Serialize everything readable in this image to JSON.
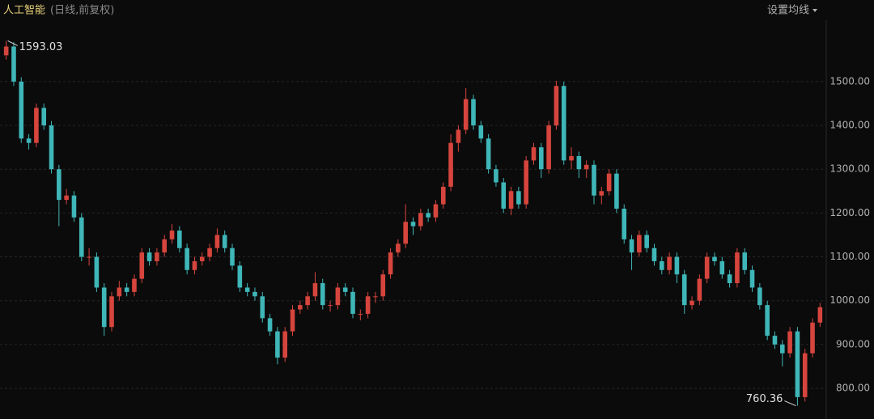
{
  "chart_data": {
    "type": "candlestick",
    "title": "人工智能",
    "subtitle": "(日线,前复权)",
    "button": "设置均线",
    "up_color": "#d6453d",
    "down_color": "#3fb6b8",
    "grid": true,
    "ylim": [
      730,
      1640
    ],
    "yticks": [
      {
        "value": 800,
        "label": "800.00"
      },
      {
        "value": 900,
        "label": "900.00"
      },
      {
        "value": 1000,
        "label": "1000.00"
      },
      {
        "value": 1100,
        "label": "1100.00"
      },
      {
        "value": 1200,
        "label": "1200.00"
      },
      {
        "value": 1300,
        "label": "1300.00"
      },
      {
        "value": 1400,
        "label": "1400.00"
      },
      {
        "value": 1500,
        "label": "1500.00"
      }
    ],
    "ohlc": [
      [
        1560,
        1593.03,
        1550,
        1580
      ],
      [
        1580,
        1590,
        1490,
        1500
      ],
      [
        1500,
        1510,
        1360,
        1370
      ],
      [
        1370,
        1380,
        1345,
        1360
      ],
      [
        1360,
        1450,
        1350,
        1440
      ],
      [
        1440,
        1450,
        1390,
        1400
      ],
      [
        1400,
        1410,
        1290,
        1300
      ],
      [
        1300,
        1310,
        1170,
        1230
      ],
      [
        1230,
        1255,
        1220,
        1240
      ],
      [
        1240,
        1250,
        1180,
        1190
      ],
      [
        1190,
        1200,
        1090,
        1100
      ],
      [
        1100,
        1120,
        1080,
        1100
      ],
      [
        1100,
        1110,
        1020,
        1030
      ],
      [
        1030,
        1040,
        920,
        940
      ],
      [
        940,
        1020,
        930,
        1010
      ],
      [
        1010,
        1045,
        1000,
        1030
      ],
      [
        1030,
        1040,
        1010,
        1020
      ],
      [
        1020,
        1060,
        1010,
        1050
      ],
      [
        1050,
        1120,
        1040,
        1110
      ],
      [
        1110,
        1120,
        1080,
        1090
      ],
      [
        1090,
        1120,
        1080,
        1110
      ],
      [
        1110,
        1150,
        1100,
        1140
      ],
      [
        1140,
        1175,
        1130,
        1160
      ],
      [
        1160,
        1170,
        1110,
        1120
      ],
      [
        1120,
        1130,
        1060,
        1070
      ],
      [
        1070,
        1100,
        1060,
        1090
      ],
      [
        1090,
        1110,
        1080,
        1100
      ],
      [
        1100,
        1130,
        1090,
        1120
      ],
      [
        1120,
        1165,
        1110,
        1150
      ],
      [
        1150,
        1160,
        1110,
        1120
      ],
      [
        1120,
        1130,
        1070,
        1080
      ],
      [
        1080,
        1090,
        1020,
        1030
      ],
      [
        1030,
        1040,
        1010,
        1020
      ],
      [
        1020,
        1030,
        1000,
        1010
      ],
      [
        1010,
        1020,
        950,
        960
      ],
      [
        960,
        970,
        920,
        930
      ],
      [
        930,
        940,
        855,
        870
      ],
      [
        870,
        940,
        860,
        930
      ],
      [
        930,
        990,
        920,
        980
      ],
      [
        980,
        1000,
        970,
        990
      ],
      [
        990,
        1020,
        980,
        1010
      ],
      [
        1010,
        1065,
        1000,
        1040
      ],
      [
        1040,
        1050,
        980,
        990
      ],
      [
        990,
        1000,
        975,
        990
      ],
      [
        990,
        1040,
        980,
        1030
      ],
      [
        1030,
        1040,
        1010,
        1020
      ],
      [
        1020,
        1030,
        960,
        970
      ],
      [
        970,
        980,
        955,
        970
      ],
      [
        970,
        1020,
        960,
        1010
      ],
      [
        1010,
        1020,
        995,
        1010
      ],
      [
        1010,
        1070,
        1000,
        1060
      ],
      [
        1060,
        1120,
        1050,
        1110
      ],
      [
        1110,
        1140,
        1100,
        1130
      ],
      [
        1130,
        1220,
        1120,
        1180
      ],
      [
        1180,
        1190,
        1150,
        1170
      ],
      [
        1170,
        1210,
        1160,
        1200
      ],
      [
        1200,
        1210,
        1180,
        1190
      ],
      [
        1190,
        1230,
        1180,
        1220
      ],
      [
        1220,
        1270,
        1210,
        1260
      ],
      [
        1260,
        1380,
        1250,
        1360
      ],
      [
        1360,
        1400,
        1340,
        1390
      ],
      [
        1390,
        1485,
        1380,
        1460
      ],
      [
        1460,
        1470,
        1390,
        1400
      ],
      [
        1400,
        1410,
        1360,
        1370
      ],
      [
        1370,
        1380,
        1290,
        1300
      ],
      [
        1300,
        1310,
        1260,
        1270
      ],
      [
        1270,
        1280,
        1200,
        1210
      ],
      [
        1210,
        1260,
        1195,
        1250
      ],
      [
        1250,
        1260,
        1210,
        1220
      ],
      [
        1220,
        1330,
        1210,
        1320
      ],
      [
        1320,
        1360,
        1310,
        1350
      ],
      [
        1350,
        1360,
        1280,
        1300
      ],
      [
        1300,
        1410,
        1290,
        1400
      ],
      [
        1400,
        1502,
        1390,
        1490
      ],
      [
        1490,
        1500,
        1310,
        1320
      ],
      [
        1320,
        1350,
        1300,
        1330
      ],
      [
        1330,
        1340,
        1280,
        1300
      ],
      [
        1300,
        1320,
        1280,
        1310
      ],
      [
        1310,
        1320,
        1220,
        1240
      ],
      [
        1240,
        1260,
        1220,
        1250
      ],
      [
        1250,
        1300,
        1240,
        1290
      ],
      [
        1290,
        1300,
        1200,
        1210
      ],
      [
        1210,
        1220,
        1130,
        1140
      ],
      [
        1140,
        1150,
        1070,
        1110
      ],
      [
        1110,
        1160,
        1100,
        1150
      ],
      [
        1150,
        1160,
        1110,
        1120
      ],
      [
        1120,
        1130,
        1080,
        1090
      ],
      [
        1090,
        1100,
        1060,
        1070
      ],
      [
        1070,
        1110,
        1060,
        1100
      ],
      [
        1100,
        1110,
        1040,
        1060
      ],
      [
        1060,
        1070,
        970,
        990
      ],
      [
        990,
        1010,
        980,
        1000
      ],
      [
        1000,
        1060,
        990,
        1050
      ],
      [
        1050,
        1110,
        1040,
        1100
      ],
      [
        1100,
        1110,
        1080,
        1090
      ],
      [
        1090,
        1100,
        1050,
        1060
      ],
      [
        1060,
        1070,
        1030,
        1040
      ],
      [
        1040,
        1120,
        1030,
        1110
      ],
      [
        1110,
        1120,
        1060,
        1070
      ],
      [
        1070,
        1080,
        1020,
        1030
      ],
      [
        1030,
        1040,
        980,
        990
      ],
      [
        990,
        1000,
        910,
        920
      ],
      [
        920,
        930,
        890,
        900
      ],
      [
        900,
        910,
        850,
        880
      ],
      [
        880,
        940,
        870,
        930
      ],
      [
        930,
        940,
        760.36,
        780
      ],
      [
        780,
        890,
        770,
        880
      ],
      [
        880,
        960,
        870,
        950
      ],
      [
        950,
        995,
        940,
        985
      ]
    ]
  }
}
